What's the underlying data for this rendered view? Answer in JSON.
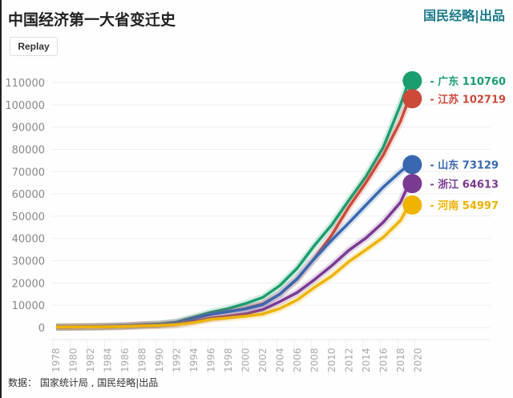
{
  "title": "中国经济第一大省变迁史",
  "brand": "国民经略|出品",
  "replay_label": "Replay",
  "source": "数据：  国家统计局 , 国民经略|出品",
  "chart_data": {
    "type": "line",
    "title": "中国经济第一大省变迁史",
    "ylim": [
      0,
      110000
    ],
    "yticks": [
      0,
      10000,
      20000,
      30000,
      40000,
      50000,
      60000,
      70000,
      80000,
      90000,
      100000,
      110000
    ],
    "xticks": [
      "1978",
      "1980",
      "1982",
      "1984",
      "1986",
      "1988",
      "1990",
      "1992",
      "1994",
      "1996",
      "1998",
      "2000",
      "2002",
      "2004",
      "2006",
      "2008",
      "2010",
      "2012",
      "2014",
      "2016",
      "2018",
      "2020"
    ],
    "grid": true,
    "x": [
      1978,
      1980,
      1982,
      1984,
      1986,
      1988,
      1990,
      1992,
      1994,
      1996,
      1998,
      2000,
      2002,
      2004,
      2006,
      2008,
      2010,
      2012,
      2014,
      2016,
      2018,
      2019
    ],
    "series": [
      {
        "name": "广东",
        "end_value": "110760",
        "color": "#1a9e6e",
        "values": [
          186,
          250,
          340,
          459,
          668,
          1155,
          1559,
          2448,
          4619,
          6835,
          8531,
          10741,
          13502,
          18865,
          26588,
          36797,
          46013,
          57068,
          67810,
          80855,
          99945,
          110760
        ]
      },
      {
        "name": "江苏",
        "end_value": "102719",
        "color": "#cc4a3a",
        "values": [
          249,
          319,
          390,
          518,
          744,
          1208,
          1417,
          2136,
          4057,
          6004,
          7200,
          8554,
          10607,
          15004,
          21742,
          30982,
          41425,
          54058,
          65088,
          77388,
          92595,
          102719
        ]
      },
      {
        "name": "山东",
        "end_value": "73129",
        "color": "#3a68b0",
        "values": [
          225,
          292,
          395,
          582,
          742,
          1117,
          1511,
          2197,
          4044,
          5960,
          7162,
          8338,
          10276,
          15022,
          21900,
          30933,
          39170,
          47000,
          55000,
          63000,
          70000,
          73129
        ]
      },
      {
        "name": "浙江",
        "end_value": "64613",
        "color": "#7b3a92",
        "values": [
          124,
          180,
          234,
          323,
          502,
          770,
          905,
          1376,
          2689,
          4189,
          5053,
          6141,
          8004,
          11649,
          15718,
          21463,
          27722,
          34665,
          40173,
          47251,
          56197,
          64613
        ]
      },
      {
        "name": "河南",
        "end_value": "54997",
        "color": "#efb300",
        "values": [
          163,
          229,
          263,
          370,
          502,
          749,
          935,
          1280,
          2224,
          3661,
          4357,
          5053,
          6035,
          8554,
          12363,
          18019,
          23092,
          29599,
          34938,
          40472,
          48056,
          54997
        ]
      }
    ]
  }
}
